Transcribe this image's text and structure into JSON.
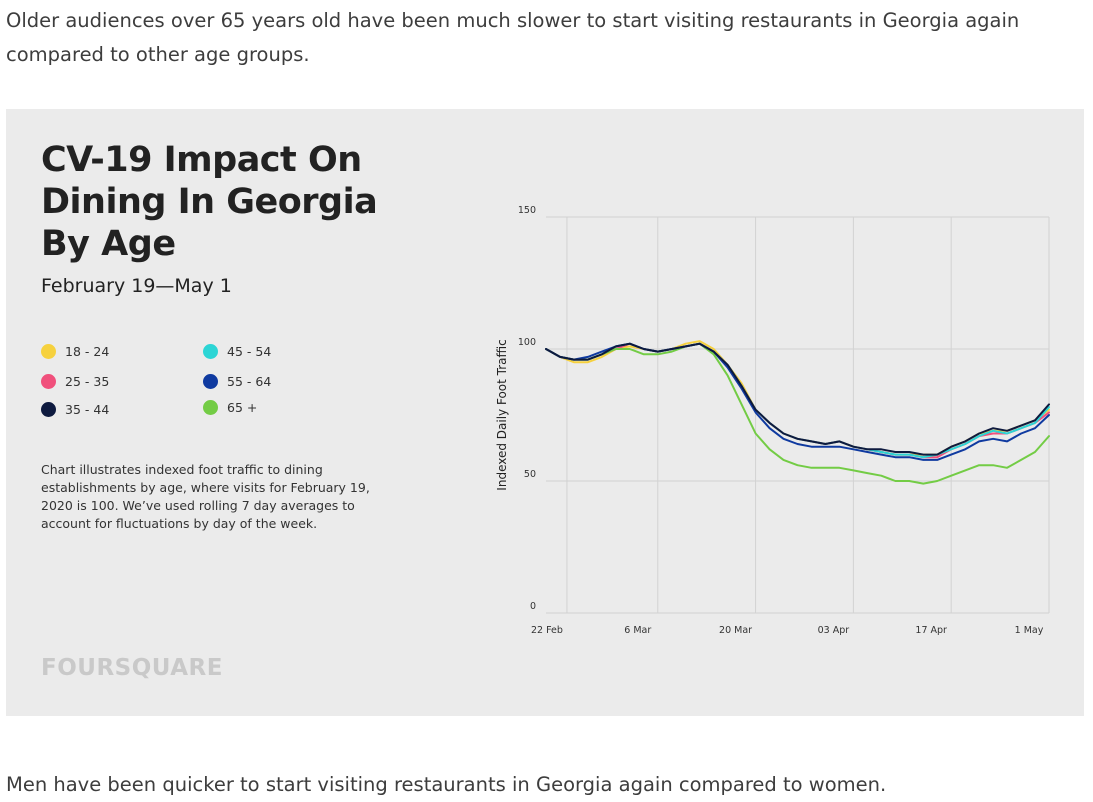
{
  "article": {
    "intro": "Older audiences over 65 years old have been much slower to start visiting restaurants in Georgia again compared to other age groups.",
    "outro": "Men have been quicker to start visiting restaurants in Georgia again compared to women."
  },
  "card": {
    "title_lines": [
      "CV-19 Impact On",
      "Dining In Georgia",
      "By Age"
    ],
    "subtitle": "February 19—May 1",
    "note": "Chart illustrates indexed foot traffic to dining establishments by age, where visits for February 19, 2020 is 100. We’ve used rolling 7 day averages to account for fluctuations by day of the week.",
    "brand": "FOURSQUARE"
  },
  "chart_data": {
    "type": "line",
    "title": "CV-19 Impact On Dining In Georgia By Age",
    "subtitle": "February 19—May 1",
    "ylabel": "Indexed Daily Foot Traffic",
    "xlabel": "",
    "ylim": [
      0,
      150
    ],
    "yticks": [
      0,
      50,
      100,
      150
    ],
    "grid": true,
    "legend_position": "left",
    "x_tick_labels": [
      "22 Feb",
      "6 Mar",
      "20 Mar",
      "03 Apr",
      "17 Apr",
      "1 May"
    ],
    "x_tick_dates": [
      "2020-02-22",
      "2020-03-06",
      "2020-03-20",
      "2020-04-03",
      "2020-04-17",
      "2020-05-01"
    ],
    "x": [
      "2020-02-19",
      "2020-02-21",
      "2020-02-23",
      "2020-02-25",
      "2020-02-27",
      "2020-02-29",
      "2020-03-02",
      "2020-03-04",
      "2020-03-06",
      "2020-03-08",
      "2020-03-10",
      "2020-03-12",
      "2020-03-14",
      "2020-03-16",
      "2020-03-18",
      "2020-03-20",
      "2020-03-22",
      "2020-03-24",
      "2020-03-26",
      "2020-03-28",
      "2020-03-30",
      "2020-04-01",
      "2020-04-03",
      "2020-04-05",
      "2020-04-07",
      "2020-04-09",
      "2020-04-11",
      "2020-04-13",
      "2020-04-15",
      "2020-04-17",
      "2020-04-19",
      "2020-04-21",
      "2020-04-23",
      "2020-04-25",
      "2020-04-27",
      "2020-04-29",
      "2020-05-01"
    ],
    "series": [
      {
        "name": "18 - 24",
        "color": "#f6d13e",
        "values": [
          100,
          97,
          95,
          95,
          97,
          100,
          101,
          100,
          99,
          100,
          102,
          103,
          100,
          94,
          87,
          77,
          72,
          68,
          66,
          65,
          64,
          65,
          63,
          62,
          61,
          60,
          60,
          60,
          60,
          63,
          65,
          68,
          69,
          69,
          71,
          73,
          77
        ]
      },
      {
        "name": "25 - 35",
        "color": "#f0507c",
        "values": [
          100,
          97,
          96,
          96,
          98,
          100,
          102,
          100,
          99,
          100,
          101,
          102,
          99,
          94,
          86,
          77,
          72,
          68,
          66,
          65,
          64,
          65,
          63,
          62,
          61,
          60,
          60,
          59,
          59,
          62,
          64,
          67,
          68,
          68,
          70,
          72,
          76
        ]
      },
      {
        "name": "35 - 44",
        "color": "#0e1a3f",
        "values": [
          100,
          97,
          96,
          96,
          98,
          101,
          102,
          100,
          99,
          100,
          101,
          102,
          99,
          94,
          86,
          77,
          72,
          68,
          66,
          65,
          64,
          65,
          63,
          62,
          62,
          61,
          61,
          60,
          60,
          63,
          65,
          68,
          70,
          69,
          71,
          73,
          79
        ]
      },
      {
        "name": "45 - 54",
        "color": "#2cd5d5",
        "values": [
          100,
          97,
          96,
          96,
          98,
          101,
          102,
          100,
          99,
          100,
          101,
          102,
          99,
          94,
          86,
          77,
          72,
          68,
          66,
          65,
          64,
          65,
          63,
          62,
          61,
          60,
          60,
          59,
          60,
          62,
          64,
          67,
          69,
          68,
          70,
          72,
          78
        ]
      },
      {
        "name": "55 - 64",
        "color": "#0f3aa0",
        "values": [
          100,
          97,
          96,
          97,
          99,
          101,
          102,
          100,
          99,
          100,
          101,
          102,
          99,
          93,
          85,
          76,
          70,
          66,
          64,
          63,
          63,
          63,
          62,
          61,
          60,
          59,
          59,
          58,
          58,
          60,
          62,
          65,
          66,
          65,
          68,
          70,
          75
        ]
      },
      {
        "name": "65 +",
        "color": "#73cc45",
        "values": [
          100,
          97,
          96,
          96,
          98,
          100,
          100,
          98,
          98,
          99,
          101,
          102,
          98,
          90,
          79,
          68,
          62,
          58,
          56,
          55,
          55,
          55,
          54,
          53,
          52,
          50,
          50,
          49,
          50,
          52,
          54,
          56,
          56,
          55,
          58,
          61,
          67
        ]
      }
    ]
  }
}
